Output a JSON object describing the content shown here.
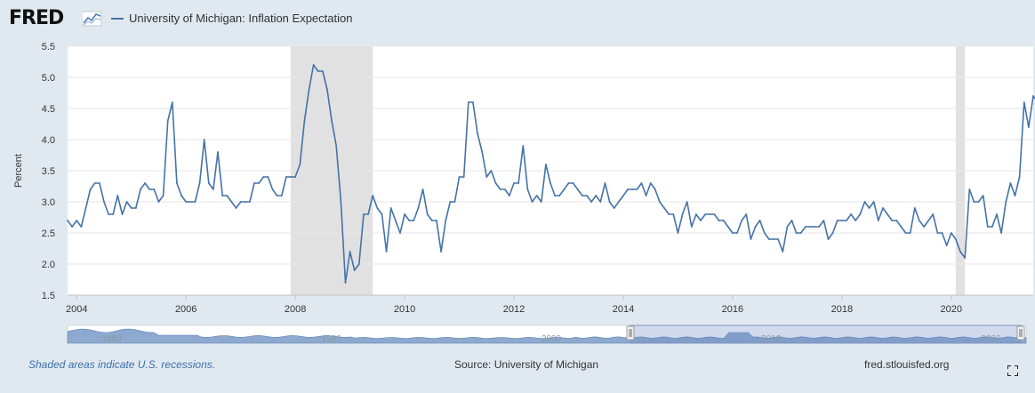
{
  "header": {
    "logo_text": "FRED",
    "legend_label": "University of Michigan: Inflation Expectation",
    "series_color": "#4572a7"
  },
  "footer": {
    "recession_note": "Shaded areas indicate U.S. recessions.",
    "source": "Source: University of Michigan",
    "site": "fred.stlouisfed.org"
  },
  "navigator": {
    "tick_labels": [
      "1980",
      "1990",
      "2000",
      "2010",
      "2020"
    ],
    "selected_range": [
      "2004",
      "2021"
    ]
  },
  "chart_data": {
    "type": "line",
    "title": "",
    "xlabel": "",
    "ylabel": "Percent",
    "ylim": [
      1.5,
      5.5
    ],
    "xlim": [
      "2003-11",
      "2021-07"
    ],
    "y_ticks": [
      "1.5",
      "2.0",
      "2.5",
      "3.0",
      "3.5",
      "4.0",
      "4.5",
      "5.0",
      "5.5"
    ],
    "x_ticks": [
      "2004",
      "2006",
      "2008",
      "2010",
      "2012",
      "2014",
      "2016",
      "2018",
      "2020"
    ],
    "grid": true,
    "legend_position": "top-left",
    "recessions": [
      [
        "2007-12",
        "2009-06"
      ],
      [
        "2020-02",
        "2020-04"
      ]
    ],
    "series": [
      {
        "name": "University of Michigan: Inflation Expectation",
        "start": "2003-11",
        "frequency": "monthly",
        "values": [
          2.7,
          2.6,
          2.7,
          2.6,
          2.9,
          3.2,
          3.3,
          3.3,
          3.0,
          2.8,
          2.8,
          3.1,
          2.8,
          3.0,
          2.9,
          2.9,
          3.2,
          3.3,
          3.2,
          3.2,
          3.0,
          3.1,
          4.3,
          4.6,
          3.3,
          3.1,
          3.0,
          3.0,
          3.0,
          3.3,
          4.0,
          3.3,
          3.2,
          3.8,
          3.1,
          3.1,
          3.0,
          2.9,
          3.0,
          3.0,
          3.0,
          3.3,
          3.3,
          3.4,
          3.4,
          3.2,
          3.1,
          3.1,
          3.4,
          3.4,
          3.4,
          3.6,
          4.3,
          4.8,
          5.2,
          5.1,
          5.1,
          4.8,
          4.3,
          3.9,
          3.0,
          1.7,
          2.2,
          1.9,
          2.0,
          2.8,
          2.8,
          3.1,
          2.9,
          2.8,
          2.2,
          2.9,
          2.7,
          2.5,
          2.8,
          2.7,
          2.7,
          2.9,
          3.2,
          2.8,
          2.7,
          2.7,
          2.2,
          2.7,
          3.0,
          3.0,
          3.4,
          3.4,
          4.6,
          4.6,
          4.1,
          3.8,
          3.4,
          3.5,
          3.3,
          3.2,
          3.2,
          3.1,
          3.3,
          3.3,
          3.9,
          3.2,
          3.0,
          3.1,
          3.0,
          3.6,
          3.3,
          3.1,
          3.1,
          3.2,
          3.3,
          3.3,
          3.2,
          3.1,
          3.1,
          3.0,
          3.1,
          3.0,
          3.3,
          3.0,
          2.9,
          3.0,
          3.1,
          3.2,
          3.2,
          3.2,
          3.3,
          3.1,
          3.3,
          3.2,
          3.0,
          2.9,
          2.8,
          2.8,
          2.5,
          2.8,
          3.0,
          2.6,
          2.8,
          2.7,
          2.8,
          2.8,
          2.8,
          2.7,
          2.7,
          2.6,
          2.5,
          2.5,
          2.7,
          2.8,
          2.4,
          2.6,
          2.7,
          2.5,
          2.4,
          2.4,
          2.4,
          2.2,
          2.6,
          2.7,
          2.5,
          2.5,
          2.6,
          2.6,
          2.6,
          2.6,
          2.7,
          2.4,
          2.5,
          2.7,
          2.7,
          2.7,
          2.8,
          2.7,
          2.8,
          3.0,
          2.9,
          3.0,
          2.7,
          2.9,
          2.8,
          2.7,
          2.7,
          2.6,
          2.5,
          2.5,
          2.9,
          2.7,
          2.6,
          2.7,
          2.8,
          2.5,
          2.5,
          2.3,
          2.5,
          2.4,
          2.2,
          2.1,
          3.2,
          3.0,
          3.0,
          3.1,
          2.6,
          2.6,
          2.8,
          2.5,
          3.0,
          3.3,
          3.1,
          3.4,
          4.6,
          4.2,
          4.7,
          4.6
        ]
      }
    ]
  }
}
